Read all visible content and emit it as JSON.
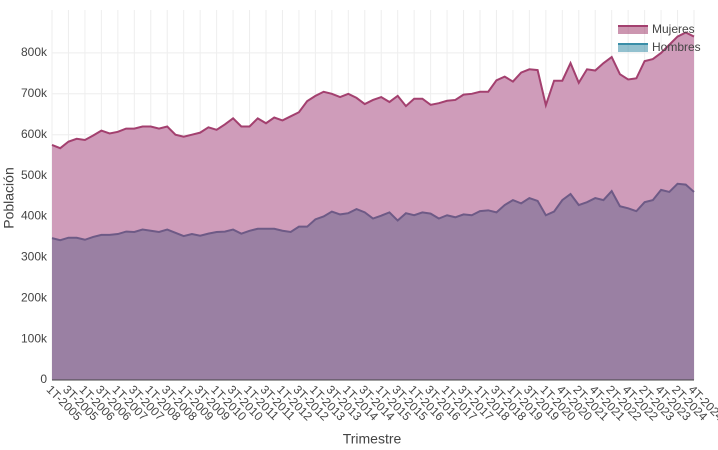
{
  "chart_data": {
    "type": "area",
    "x_label": "Trimestre",
    "y_label": "Población",
    "categories": [
      "1T-2005",
      null,
      "3T-2005",
      null,
      "1T-2006",
      null,
      "3T-2006",
      null,
      "1T-2007",
      null,
      "3T-2007",
      null,
      "1T-2008",
      null,
      "3T-2008",
      null,
      "1T-2009",
      null,
      "3T-2009",
      null,
      "1T-2010",
      null,
      "3T-2010",
      null,
      "1T-2011",
      null,
      "3T-2011",
      null,
      "1T-2012",
      null,
      "3T-2012",
      null,
      "1T-2013",
      null,
      "3T-2013",
      null,
      "1T-2014",
      null,
      "3T-2014",
      null,
      "1T-2015",
      null,
      "3T-2015",
      null,
      "1T-2016",
      null,
      "3T-2016",
      null,
      "1T-2017",
      null,
      "3T-2017",
      null,
      "1T-2018",
      null,
      "3T-2018",
      null,
      "1T-2019",
      null,
      "3T-2019",
      null,
      "1T-2020",
      null,
      "4T-2020",
      null,
      "2T-2021",
      null,
      "4T-2021",
      null,
      "2T-2022",
      null,
      "4T-2022",
      null,
      "2T-2023",
      null,
      "4T-2023",
      null,
      "2T-2024",
      null,
      "4T-2024"
    ],
    "series": [
      {
        "name": "Mujeres",
        "color": "#a3406f",
        "values": [
          575000,
          567000,
          583000,
          590000,
          587000,
          598000,
          610000,
          603000,
          607000,
          615000,
          615000,
          620000,
          620000,
          615000,
          620000,
          600000,
          595000,
          600000,
          605000,
          618000,
          612000,
          625000,
          640000,
          620000,
          620000,
          640000,
          628000,
          642000,
          635000,
          645000,
          655000,
          682000,
          695000,
          705000,
          700000,
          692000,
          700000,
          690000,
          675000,
          685000,
          692000,
          680000,
          695000,
          670000,
          688000,
          688000,
          673000,
          677000,
          683000,
          685000,
          698000,
          700000,
          705000,
          705000,
          733000,
          742000,
          730000,
          752000,
          760000,
          758000,
          672000,
          732000,
          732000,
          775000,
          727000,
          760000,
          757000,
          775000,
          790000,
          748000,
          735000,
          738000,
          780000,
          785000,
          800000,
          820000,
          840000,
          850000,
          840000
        ]
      },
      {
        "name": "Hombres",
        "color": "#3a8ea8",
        "values": [
          347000,
          342000,
          348000,
          348000,
          343000,
          350000,
          355000,
          355000,
          357000,
          363000,
          362000,
          368000,
          365000,
          362000,
          368000,
          360000,
          352000,
          357000,
          353000,
          358000,
          362000,
          363000,
          368000,
          358000,
          365000,
          370000,
          370000,
          370000,
          365000,
          362000,
          375000,
          375000,
          393000,
          400000,
          412000,
          405000,
          408000,
          418000,
          410000,
          395000,
          402000,
          410000,
          390000,
          408000,
          403000,
          410000,
          407000,
          395000,
          403000,
          398000,
          405000,
          403000,
          413000,
          415000,
          410000,
          428000,
          440000,
          432000,
          445000,
          438000,
          403000,
          412000,
          440000,
          455000,
          428000,
          435000,
          445000,
          440000,
          462000,
          425000,
          420000,
          413000,
          435000,
          440000,
          465000,
          460000,
          480000,
          478000,
          460000
        ]
      }
    ],
    "ylim": [
      0,
      905000
    ],
    "yticks": [
      0,
      {
        "value": 100000,
        "label": "100k"
      },
      {
        "value": 200000,
        "label": "200k"
      },
      {
        "value": 300000,
        "label": "300k"
      },
      {
        "value": 400000,
        "label": "400k"
      },
      {
        "value": 500000,
        "label": "500k"
      },
      {
        "value": 600000,
        "label": "600k"
      },
      {
        "value": 700000,
        "label": "700k"
      },
      {
        "value": 800000,
        "label": "800k"
      }
    ],
    "grid": true,
    "legend": "top-right"
  }
}
